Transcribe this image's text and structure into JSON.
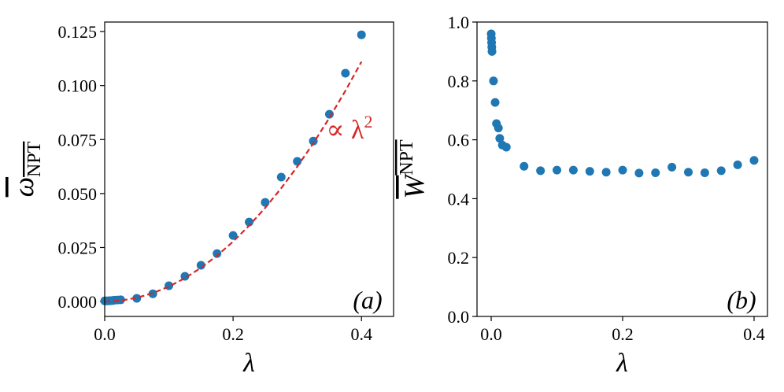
{
  "chart_data": [
    {
      "type": "scatter",
      "panel_label": "(a)",
      "xlabel": "λ",
      "ylabel": {
        "base": "ω",
        "sub": "NPT"
      },
      "annotation": {
        "text": "∝ λ",
        "sup": "2",
        "color": "#d62728"
      },
      "xlim": [
        0,
        0.45
      ],
      "ylim": [
        -0.0069,
        0.1294
      ],
      "xticks": [
        {
          "value": 0,
          "label": "0.0"
        },
        {
          "value": 0.2,
          "label": "0.2"
        },
        {
          "value": 0.4,
          "label": "0.4"
        }
      ],
      "yticks": [
        {
          "value": 0,
          "label": "0.000"
        },
        {
          "value": 0.025,
          "label": "0.025"
        },
        {
          "value": 0.05,
          "label": "0.050"
        },
        {
          "value": 0.075,
          "label": "0.075"
        },
        {
          "value": 0.1,
          "label": "0.100"
        },
        {
          "value": 0.125,
          "label": "0.125"
        }
      ],
      "series": [
        {
          "color": "#1f77b4",
          "x": [
            0,
            0.0025,
            0.005,
            0.0075,
            0.01,
            0.0125,
            0.015,
            0.02,
            0.025,
            0.05,
            0.075,
            0.1,
            0.125,
            0.15,
            0.175,
            0.2,
            0.225,
            0.25,
            0.275,
            0.3,
            0.325,
            0.35,
            0.375,
            0.4
          ],
          "values": [
            0.0003,
            0.0003,
            0.0003,
            0.0004,
            0.0004,
            0.0005,
            0.0006,
            0.0007,
            0.0008,
            0.0015,
            0.0036,
            0.0073,
            0.0117,
            0.0168,
            0.0222,
            0.0306,
            0.0368,
            0.0459,
            0.0576,
            0.0649,
            0.0743,
            0.0867,
            0.1057,
            0.1235
          ]
        },
        {
          "color": "#d62728",
          "dashed": true,
          "x": [
            0,
            0.025,
            0.05,
            0.075,
            0.1,
            0.125,
            0.15,
            0.175,
            0.2,
            0.225,
            0.25,
            0.275,
            0.3,
            0.325,
            0.35,
            0.375,
            0.4
          ],
          "values": [
            0,
            0.00043,
            0.00174,
            0.0039,
            0.00694,
            0.01084,
            0.01562,
            0.02125,
            0.02776,
            0.03513,
            0.04338,
            0.05248,
            0.06246,
            0.0733,
            0.08502,
            0.09759,
            0.11104
          ]
        }
      ]
    },
    {
      "type": "scatter",
      "panel_label": "(b)",
      "xlabel": "λ",
      "ylabel": {
        "base": "W",
        "sup": "NPT"
      },
      "xlim": [
        -0.0216,
        0.4204
      ],
      "ylim": [
        0,
        1
      ],
      "xticks": [
        {
          "value": 0,
          "label": "0.0"
        },
        {
          "value": 0.2,
          "label": "0.2"
        },
        {
          "value": 0.4,
          "label": "0.4"
        }
      ],
      "yticks": [
        {
          "value": 0,
          "label": "0.0"
        },
        {
          "value": 0.2,
          "label": "0.2"
        },
        {
          "value": 0.4,
          "label": "0.4"
        },
        {
          "value": 0.6,
          "label": "0.6"
        },
        {
          "value": 0.8,
          "label": "0.8"
        },
        {
          "value": 1,
          "label": "1.0"
        }
      ],
      "series": [
        {
          "color": "#1f77b4",
          "x": [
            0,
            0.0003,
            0.0006,
            0.0009,
            0.0012,
            0.0035,
            0.006,
            0.008,
            0.011,
            0.013,
            0.017,
            0.023,
            0.05,
            0.075,
            0.1,
            0.125,
            0.15,
            0.175,
            0.2,
            0.225,
            0.25,
            0.275,
            0.3,
            0.325,
            0.35,
            0.375,
            0.4
          ],
          "values": [
            0.96,
            0.945,
            0.93,
            0.915,
            0.9,
            0.8,
            0.727,
            0.655,
            0.64,
            0.605,
            0.582,
            0.575,
            0.51,
            0.495,
            0.497,
            0.497,
            0.493,
            0.49,
            0.497,
            0.487,
            0.488,
            0.507,
            0.49,
            0.488,
            0.495,
            0.515,
            0.53
          ]
        }
      ]
    }
  ]
}
